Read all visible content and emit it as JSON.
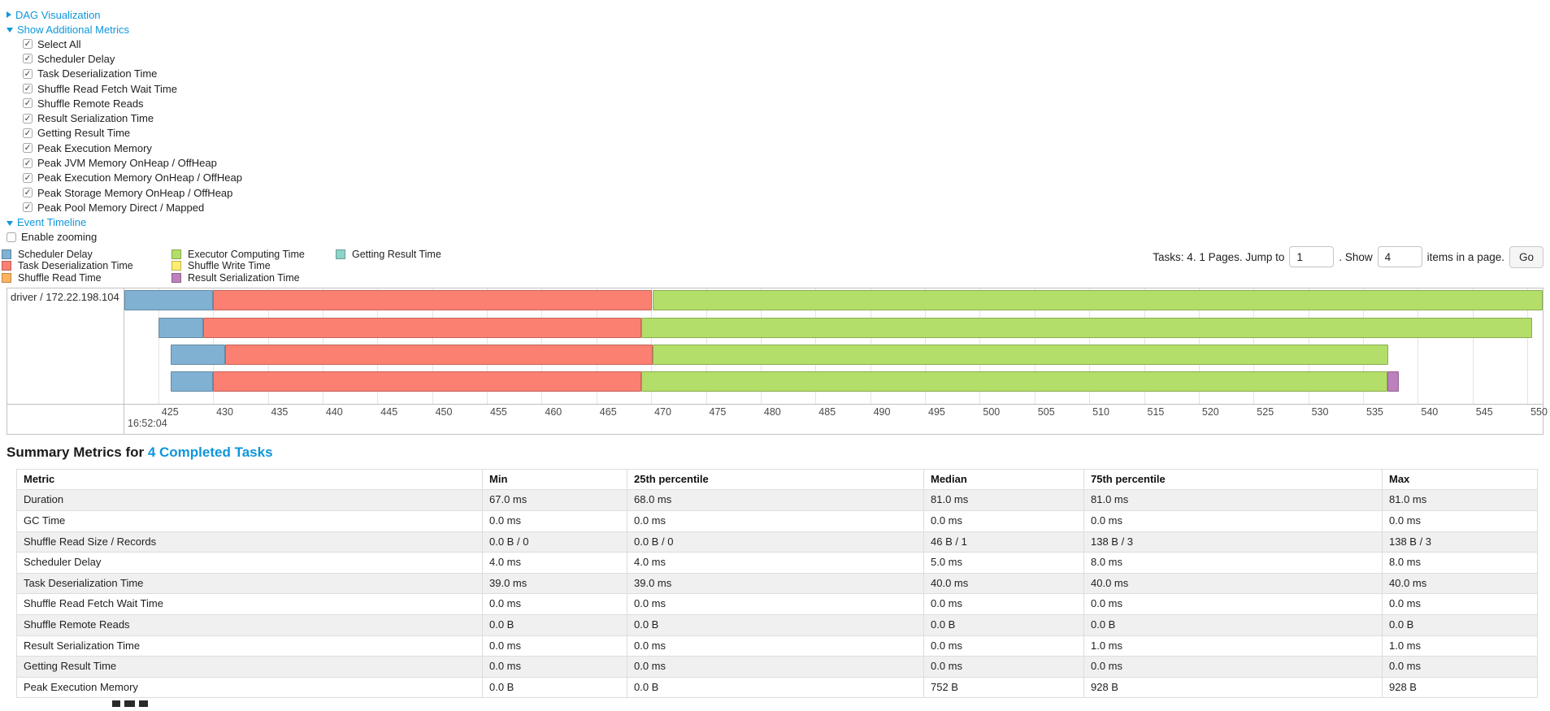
{
  "controls": {
    "dag_label": "DAG Visualization",
    "metrics_toggle_label": "Show Additional Metrics",
    "metric_checkboxes": [
      "Select All",
      "Scheduler Delay",
      "Task Deserialization Time",
      "Shuffle Read Fetch Wait Time",
      "Shuffle Remote Reads",
      "Result Serialization Time",
      "Getting Result Time",
      "Peak Execution Memory",
      "Peak JVM Memory OnHeap / OffHeap",
      "Peak Execution Memory OnHeap / OffHeap",
      "Peak Storage Memory OnHeap / OffHeap",
      "Peak Pool Memory Direct / Mapped"
    ],
    "event_timeline_label": "Event Timeline",
    "enable_zooming_label": "Enable zooming",
    "enable_zooming_checked": false
  },
  "pagination": {
    "tasks_text": "Tasks: 4. 1 Pages. Jump to",
    "jump_value": "1",
    "show_text": ". Show",
    "show_value": "4",
    "items_text": "items in a page.",
    "go_label": "Go"
  },
  "legend": {
    "columns": [
      [
        {
          "label": "Scheduler Delay",
          "color": "#80B1D3"
        },
        {
          "label": "Task Deserialization Time",
          "color": "#FB8072"
        },
        {
          "label": "Shuffle Read Time",
          "color": "#FDB462"
        }
      ],
      [
        {
          "label": "Executor Computing Time",
          "color": "#B3DE69"
        },
        {
          "label": "Shuffle Write Time",
          "color": "#FFED6F"
        },
        {
          "label": "Result Serialization Time",
          "color": "#BC80BD"
        }
      ],
      [
        {
          "label": "Getting Result Time",
          "color": "#8DD3C7"
        }
      ]
    ]
  },
  "chart_data": {
    "type": "timeline",
    "group_label": "driver / 172.22.198.104",
    "axis": {
      "min": 421.9,
      "max": 551.4,
      "tick_first": 425,
      "tick_step": 5,
      "tick_last": 550,
      "major_label": "16:52:04",
      "unit": "ms within second 16:52:04"
    },
    "colors": {
      "scheduler_delay": "#80B1D3",
      "task_deserialization": "#FB8072",
      "shuffle_read": "#FDB462",
      "executor_computing": "#B3DE69",
      "shuffle_write": "#FFED6F",
      "result_serialization": "#BC80BD",
      "getting_result": "#8DD3C7"
    },
    "tasks": [
      {
        "segments": [
          {
            "metric": "scheduler_delay",
            "start": 421.9,
            "end": 430.0
          },
          {
            "metric": "task_deserialization",
            "start": 430.0,
            "end": 470.1
          },
          {
            "metric": "executor_computing",
            "start": 470.1,
            "end": 551.4
          }
        ]
      },
      {
        "segments": [
          {
            "metric": "scheduler_delay",
            "start": 425.0,
            "end": 429.1
          },
          {
            "metric": "task_deserialization",
            "start": 429.1,
            "end": 469.1
          },
          {
            "metric": "executor_computing",
            "start": 469.1,
            "end": 550.4
          }
        ]
      },
      {
        "segments": [
          {
            "metric": "scheduler_delay",
            "start": 426.1,
            "end": 431.1
          },
          {
            "metric": "task_deserialization",
            "start": 431.1,
            "end": 470.1
          },
          {
            "metric": "executor_computing",
            "start": 470.1,
            "end": 537.3
          }
        ]
      },
      {
        "segments": [
          {
            "metric": "scheduler_delay",
            "start": 426.1,
            "end": 430.0
          },
          {
            "metric": "task_deserialization",
            "start": 430.0,
            "end": 469.1
          },
          {
            "metric": "executor_computing",
            "start": 469.1,
            "end": 537.2
          },
          {
            "metric": "result_serialization",
            "start": 537.2,
            "end": 538.3
          }
        ]
      }
    ]
  },
  "summary": {
    "title_prefix": "Summary Metrics for ",
    "title_link": "4 Completed Tasks",
    "table": {
      "headers": [
        "Metric",
        "Min",
        "25th percentile",
        "Median",
        "75th percentile",
        "Max"
      ],
      "rows": [
        [
          "Duration",
          "67.0 ms",
          "68.0 ms",
          "81.0 ms",
          "81.0 ms",
          "81.0 ms"
        ],
        [
          "GC Time",
          "0.0 ms",
          "0.0 ms",
          "0.0 ms",
          "0.0 ms",
          "0.0 ms"
        ],
        [
          "Shuffle Read Size / Records",
          "0.0 B / 0",
          "0.0 B / 0",
          "46 B / 1",
          "138 B / 3",
          "138 B / 3"
        ],
        [
          "Scheduler Delay",
          "4.0 ms",
          "4.0 ms",
          "5.0 ms",
          "8.0 ms",
          "8.0 ms"
        ],
        [
          "Task Deserialization Time",
          "39.0 ms",
          "39.0 ms",
          "40.0 ms",
          "40.0 ms",
          "40.0 ms"
        ],
        [
          "Shuffle Read Fetch Wait Time",
          "0.0 ms",
          "0.0 ms",
          "0.0 ms",
          "0.0 ms",
          "0.0 ms"
        ],
        [
          "Shuffle Remote Reads",
          "0.0 B",
          "0.0 B",
          "0.0 B",
          "0.0 B",
          "0.0 B"
        ],
        [
          "Result Serialization Time",
          "0.0 ms",
          "0.0 ms",
          "0.0 ms",
          "1.0 ms",
          "1.0 ms"
        ],
        [
          "Getting Result Time",
          "0.0 ms",
          "0.0 ms",
          "0.0 ms",
          "0.0 ms",
          "0.0 ms"
        ],
        [
          "Peak Execution Memory",
          "0.0 B",
          "0.0 B",
          "752 B",
          "928 B",
          "928 B"
        ]
      ]
    }
  }
}
